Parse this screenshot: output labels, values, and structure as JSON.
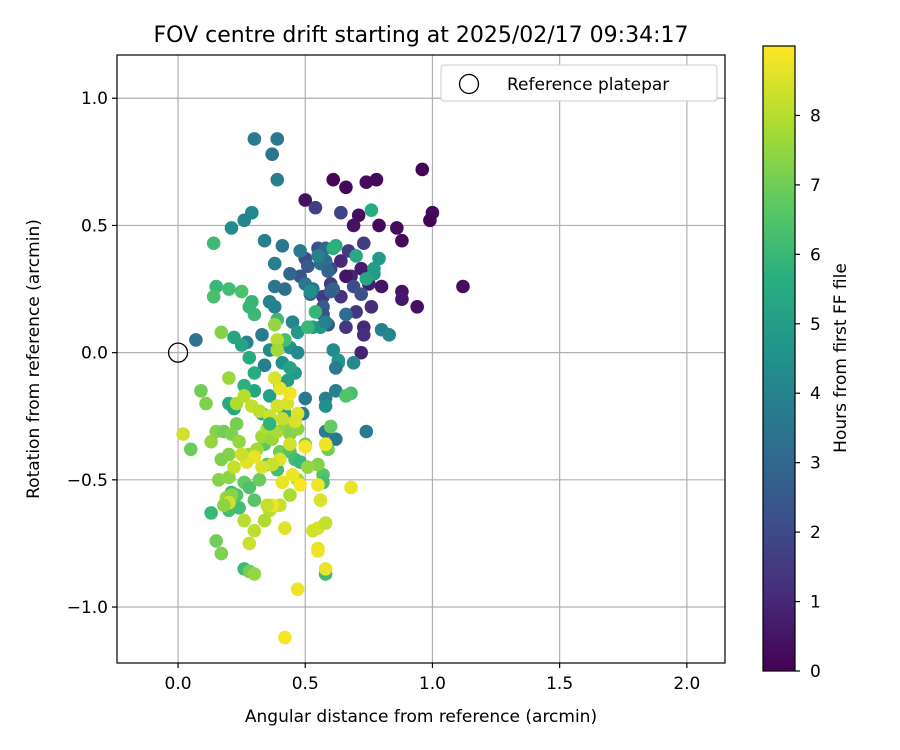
{
  "chart_data": {
    "type": "scatter",
    "title": "FOV centre drift starting at 2025/02/17 09:34:17",
    "xlabel": "Angular distance from reference (arcmin)",
    "ylabel": "Rotation from reference (arcmin)",
    "xlim": [
      -0.24,
      2.15
    ],
    "ylim": [
      -1.22,
      1.17
    ],
    "xticks": [
      0.0,
      0.5,
      1.0,
      1.5,
      2.0
    ],
    "xtick_labels": [
      "0.0",
      "0.5",
      "1.0",
      "1.5",
      "2.0"
    ],
    "yticks": [
      -1.0,
      -0.5,
      0.0,
      0.5,
      1.0
    ],
    "ytick_labels": [
      "−1.0",
      "−0.5",
      "0.0",
      "0.5",
      "1.0"
    ],
    "grid": true,
    "legend": {
      "position": "top-right",
      "entries": [
        "Reference platepar"
      ]
    },
    "reference_point": {
      "name": "Reference platepar",
      "x": 0.0,
      "y": 0.0
    },
    "colorbar": {
      "label": "Hours from first FF file",
      "colormap": "viridis",
      "range": [
        0,
        9
      ],
      "ticks": [
        0,
        1,
        2,
        3,
        4,
        5,
        6,
        7,
        8
      ],
      "tick_labels": [
        "0",
        "1",
        "2",
        "3",
        "4",
        "5",
        "6",
        "7",
        "8"
      ]
    },
    "points": [
      [
        0.61,
        0.68,
        0.1
      ],
      [
        0.66,
        0.65,
        0.2
      ],
      [
        0.74,
        0.67,
        0.3
      ],
      [
        0.78,
        0.68,
        0.2
      ],
      [
        0.96,
        0.72,
        0.1
      ],
      [
        1.0,
        0.55,
        0.2
      ],
      [
        0.99,
        0.52,
        0.1
      ],
      [
        0.88,
        0.44,
        0.2
      ],
      [
        0.86,
        0.49,
        0.3
      ],
      [
        0.79,
        0.5,
        0.2
      ],
      [
        0.71,
        0.54,
        0.3
      ],
      [
        0.69,
        0.5,
        0.4
      ],
      [
        0.5,
        0.6,
        0.4
      ],
      [
        1.12,
        0.26,
        0.3
      ],
      [
        0.94,
        0.18,
        0.4
      ],
      [
        0.88,
        0.24,
        0.5
      ],
      [
        0.88,
        0.21,
        0.6
      ],
      [
        0.8,
        0.26,
        0.5
      ],
      [
        0.75,
        0.27,
        0.8
      ],
      [
        0.72,
        0.33,
        0.7
      ],
      [
        0.68,
        0.3,
        0.9
      ],
      [
        0.66,
        0.3,
        0.5
      ],
      [
        0.64,
        0.36,
        1.0
      ],
      [
        0.73,
        0.1,
        1.0
      ],
      [
        0.73,
        0.07,
        1.2
      ],
      [
        0.72,
        0.0,
        0.9
      ],
      [
        0.66,
        0.1,
        1.4
      ],
      [
        0.7,
        0.16,
        1.5
      ],
      [
        0.64,
        0.22,
        1.3
      ],
      [
        0.6,
        0.27,
        1.6
      ],
      [
        0.57,
        0.22,
        1.5
      ],
      [
        0.76,
        0.18,
        1.1
      ],
      [
        0.54,
        0.57,
        1.7
      ],
      [
        0.64,
        0.55,
        1.8
      ],
      [
        0.73,
        0.43,
        1.6
      ],
      [
        0.67,
        0.4,
        1.5
      ],
      [
        0.6,
        0.33,
        1.9
      ],
      [
        0.55,
        0.41,
        2.2
      ],
      [
        0.5,
        0.37,
        2.0
      ],
      [
        0.48,
        0.3,
        2.3
      ],
      [
        0.51,
        0.34,
        2.5
      ],
      [
        0.57,
        0.18,
        2.6
      ],
      [
        0.57,
        0.15,
        2.3
      ],
      [
        0.59,
        0.11,
        2.4
      ],
      [
        0.69,
        0.26,
        2.1
      ],
      [
        0.72,
        0.23,
        2.2
      ],
      [
        0.61,
        0.25,
        2.8
      ],
      [
        0.6,
        0.24,
        2.7
      ],
      [
        0.52,
        0.23,
        3.0
      ],
      [
        0.58,
        0.41,
        3.1
      ],
      [
        0.58,
        0.36,
        3.2
      ],
      [
        0.56,
        0.35,
        3.3
      ],
      [
        0.59,
        0.32,
        2.9
      ],
      [
        0.5,
        0.27,
        3.5
      ],
      [
        0.53,
        0.25,
        3.6
      ],
      [
        0.48,
        0.4,
        3.7
      ],
      [
        0.41,
        0.42,
        3.6
      ],
      [
        0.38,
        0.35,
        3.8
      ],
      [
        0.34,
        0.44,
        3.9
      ],
      [
        0.38,
        0.26,
        3.5
      ],
      [
        0.42,
        0.25,
        3.3
      ],
      [
        0.38,
        0.18,
        3.9
      ],
      [
        0.36,
        0.2,
        4.0
      ],
      [
        0.29,
        0.55,
        4.2
      ],
      [
        0.26,
        0.52,
        4.1
      ],
      [
        0.21,
        0.49,
        4.3
      ],
      [
        0.3,
        0.84,
        3.7
      ],
      [
        0.39,
        0.84,
        3.6
      ],
      [
        0.37,
        0.78,
        3.5
      ],
      [
        0.39,
        0.68,
        3.8
      ],
      [
        0.07,
        0.05,
        3.4
      ],
      [
        0.27,
        0.04,
        4.0
      ],
      [
        0.33,
        0.07,
        3.7
      ],
      [
        0.36,
        0.01,
        4.2
      ],
      [
        0.34,
        -0.05,
        3.9
      ],
      [
        0.41,
        -0.04,
        4.5
      ],
      [
        0.44,
        0.02,
        4.6
      ],
      [
        0.47,
        0.0,
        4.3
      ],
      [
        0.45,
        0.12,
        4.1
      ],
      [
        0.47,
        0.08,
        4.8
      ],
      [
        0.53,
        0.1,
        4.9
      ],
      [
        0.56,
        0.1,
        4.7
      ],
      [
        0.58,
        0.12,
        3.9
      ],
      [
        0.61,
        0.01,
        4.3
      ],
      [
        0.63,
        -0.04,
        5.0
      ],
      [
        0.63,
        -0.03,
        4.6
      ],
      [
        0.62,
        -0.06,
        3.7
      ],
      [
        0.69,
        -0.04,
        4.2
      ],
      [
        0.62,
        -0.15,
        4.0
      ],
      [
        0.58,
        -0.18,
        3.8
      ],
      [
        0.58,
        -0.21,
        4.5
      ],
      [
        0.5,
        -0.18,
        3.6
      ],
      [
        0.49,
        -0.24,
        3.9
      ],
      [
        0.58,
        -0.31,
        3.7
      ],
      [
        0.62,
        -0.34,
        3.6
      ],
      [
        0.74,
        -0.31,
        3.7
      ],
      [
        0.46,
        -0.08,
        4.8
      ],
      [
        0.43,
        -0.11,
        5.0
      ],
      [
        0.4,
        -0.13,
        4.6
      ],
      [
        0.36,
        -0.17,
        5.1
      ],
      [
        0.3,
        -0.15,
        5.3
      ],
      [
        0.33,
        -0.24,
        5.6
      ],
      [
        0.42,
        -0.24,
        5.4
      ],
      [
        0.25,
        0.03,
        5.2
      ],
      [
        0.22,
        0.06,
        5.3
      ],
      [
        0.28,
        -0.02,
        5.5
      ],
      [
        0.3,
        -0.08,
        5.6
      ],
      [
        0.26,
        -0.13,
        5.7
      ],
      [
        0.2,
        -0.2,
        5.5
      ],
      [
        0.22,
        -0.22,
        5.3
      ],
      [
        0.15,
        0.26,
        6.0
      ],
      [
        0.14,
        0.43,
        6.1
      ],
      [
        0.14,
        0.22,
        6.3
      ],
      [
        0.25,
        0.24,
        6.4
      ],
      [
        0.2,
        0.25,
        6.2
      ],
      [
        0.29,
        0.2,
        5.9
      ],
      [
        0.3,
        0.15,
        6.1
      ],
      [
        0.28,
        0.18,
        6.0
      ],
      [
        0.39,
        0.13,
        6.0
      ],
      [
        0.51,
        0.1,
        6.0
      ],
      [
        0.42,
        0.05,
        6.2
      ],
      [
        0.54,
        0.16,
        5.9
      ],
      [
        0.76,
        0.56,
        5.5
      ],
      [
        0.77,
        0.33,
        5.0
      ],
      [
        0.79,
        0.37,
        4.8
      ],
      [
        0.77,
        0.31,
        4.9
      ],
      [
        0.74,
        0.29,
        5.3
      ],
      [
        0.62,
        0.42,
        5.5
      ],
      [
        0.61,
        0.41,
        5.7
      ],
      [
        0.7,
        0.38,
        5.4
      ],
      [
        0.68,
        -0.16,
        6.3
      ],
      [
        0.66,
        -0.17,
        6.5
      ],
      [
        0.57,
        -0.48,
        6.5
      ],
      [
        0.57,
        -0.51,
        6.2
      ],
      [
        0.58,
        -0.87,
        6.1
      ],
      [
        0.34,
        -0.36,
        6.7
      ],
      [
        0.4,
        -0.39,
        6.9
      ],
      [
        0.44,
        -0.39,
        6.5
      ],
      [
        0.46,
        -0.42,
        6.2
      ],
      [
        0.48,
        -0.43,
        6.0
      ],
      [
        0.21,
        -0.55,
        6.0
      ],
      [
        0.24,
        -0.61,
        6.2
      ],
      [
        0.2,
        -0.62,
        6.3
      ],
      [
        0.13,
        -0.63,
        6.0
      ],
      [
        0.23,
        -0.56,
        6.5
      ],
      [
        0.26,
        -0.51,
        6.8
      ],
      [
        0.28,
        -0.53,
        6.4
      ],
      [
        0.3,
        -0.58,
        6.6
      ],
      [
        0.32,
        -0.5,
        6.9
      ],
      [
        0.35,
        -0.44,
        6.6
      ],
      [
        0.39,
        -0.46,
        6.2
      ],
      [
        0.26,
        -0.85,
        6.1
      ],
      [
        0.28,
        -0.86,
        7.0
      ],
      [
        0.3,
        -0.87,
        7.5
      ],
      [
        0.17,
        -0.79,
        7.2
      ],
      [
        0.15,
        -0.74,
        7.0
      ],
      [
        0.16,
        -0.5,
        7.3
      ],
      [
        0.19,
        -0.57,
        7.6
      ],
      [
        0.21,
        -0.56,
        7.4
      ],
      [
        0.13,
        -0.35,
        7.5
      ],
      [
        0.17,
        -0.42,
        7.2
      ],
      [
        0.2,
        -0.4,
        7.3
      ],
      [
        0.2,
        -0.49,
        7.4
      ],
      [
        0.15,
        -0.31,
        7.3
      ],
      [
        0.18,
        -0.31,
        7.0
      ],
      [
        0.21,
        -0.32,
        7.2
      ],
      [
        0.24,
        -0.35,
        7.5
      ],
      [
        0.28,
        -0.4,
        7.6
      ],
      [
        0.31,
        -0.38,
        7.7
      ],
      [
        0.33,
        -0.33,
        7.7
      ],
      [
        0.35,
        -0.3,
        7.9
      ],
      [
        0.37,
        -0.34,
        7.6
      ],
      [
        0.39,
        -0.31,
        7.8
      ],
      [
        0.42,
        -0.28,
        7.5
      ],
      [
        0.44,
        -0.32,
        7.3
      ],
      [
        0.47,
        -0.3,
        7.4
      ],
      [
        0.5,
        -0.36,
        7.1
      ],
      [
        0.6,
        -0.29,
        6.8
      ],
      [
        0.59,
        -0.38,
        7.0
      ],
      [
        0.55,
        -0.44,
        7.3
      ],
      [
        0.51,
        -0.45,
        7.5
      ],
      [
        0.47,
        -0.5,
        7.7
      ],
      [
        0.44,
        -0.56,
        7.8
      ],
      [
        0.4,
        -0.6,
        7.9
      ],
      [
        0.36,
        -0.62,
        8.0
      ],
      [
        0.34,
        -0.66,
        7.9
      ],
      [
        0.3,
        -0.7,
        8.1
      ],
      [
        0.26,
        -0.66,
        8.0
      ],
      [
        0.28,
        -0.75,
        8.3
      ],
      [
        0.09,
        -0.15,
        7.0
      ],
      [
        0.11,
        -0.2,
        7.2
      ],
      [
        0.2,
        -0.1,
        7.6
      ],
      [
        0.23,
        -0.2,
        7.9
      ],
      [
        0.26,
        -0.17,
        8.0
      ],
      [
        0.29,
        -0.21,
        8.2
      ],
      [
        0.32,
        -0.23,
        8.1
      ],
      [
        0.36,
        -0.25,
        8.3
      ],
      [
        0.39,
        -0.21,
        8.4
      ],
      [
        0.41,
        -0.26,
        8.2
      ],
      [
        0.43,
        -0.2,
        8.5
      ],
      [
        0.47,
        -0.24,
        8.6
      ],
      [
        0.46,
        -0.27,
        8.5
      ],
      [
        0.44,
        -0.36,
        8.4
      ],
      [
        0.4,
        -0.42,
        8.6
      ],
      [
        0.37,
        -0.44,
        8.3
      ],
      [
        0.33,
        -0.45,
        8.5
      ],
      [
        0.3,
        -0.41,
        8.7
      ],
      [
        0.27,
        -0.43,
        8.6
      ],
      [
        0.25,
        -0.4,
        8.3
      ],
      [
        0.22,
        -0.45,
        8.2
      ],
      [
        0.2,
        -0.59,
        8.4
      ],
      [
        0.18,
        -0.6,
        7.4
      ],
      [
        0.41,
        -0.51,
        8.7
      ],
      [
        0.45,
        -0.48,
        8.8
      ],
      [
        0.48,
        -0.52,
        8.9
      ],
      [
        0.55,
        -0.52,
        8.8
      ],
      [
        0.55,
        -0.69,
        8.5
      ],
      [
        0.58,
        -0.67,
        8.2
      ],
      [
        0.53,
        -0.7,
        8.4
      ],
      [
        0.55,
        -0.77,
        8.6
      ],
      [
        0.55,
        -0.78,
        8.8
      ],
      [
        0.58,
        -0.85,
        8.7
      ],
      [
        0.47,
        -0.93,
        8.8
      ],
      [
        0.42,
        -1.12,
        8.9
      ],
      [
        0.42,
        -0.69,
        8.6
      ],
      [
        0.4,
        -0.6,
        8.3
      ],
      [
        0.37,
        -0.6,
        8.8
      ],
      [
        0.35,
        -0.6,
        8.2
      ],
      [
        0.56,
        -0.58,
        8.5
      ],
      [
        0.68,
        -0.53,
        8.7
      ],
      [
        0.58,
        -0.36,
        8.8
      ],
      [
        0.5,
        -0.37,
        8.9
      ],
      [
        0.44,
        -0.16,
        8.8
      ],
      [
        0.4,
        -0.14,
        8.7
      ],
      [
        0.38,
        -0.1,
        8.5
      ],
      [
        0.39,
        0.05,
        8.0
      ],
      [
        0.39,
        0.01,
        7.7
      ],
      [
        0.38,
        0.11,
        7.5
      ],
      [
        0.17,
        0.08,
        7.3
      ],
      [
        0.23,
        -0.28,
        7.1
      ],
      [
        0.02,
        -0.32,
        8.4
      ],
      [
        0.05,
        -0.38,
        6.9
      ],
      [
        0.36,
        -0.28,
        5.8
      ],
      [
        0.44,
        -0.06,
        5.2
      ],
      [
        0.52,
        0.24,
        4.4
      ],
      [
        0.55,
        0.38,
        4.0
      ],
      [
        0.44,
        0.31,
        3.0
      ],
      [
        0.66,
        0.15,
        3.2
      ],
      [
        0.8,
        0.09,
        3.9
      ],
      [
        0.83,
        0.07,
        4.1
      ]
    ]
  }
}
